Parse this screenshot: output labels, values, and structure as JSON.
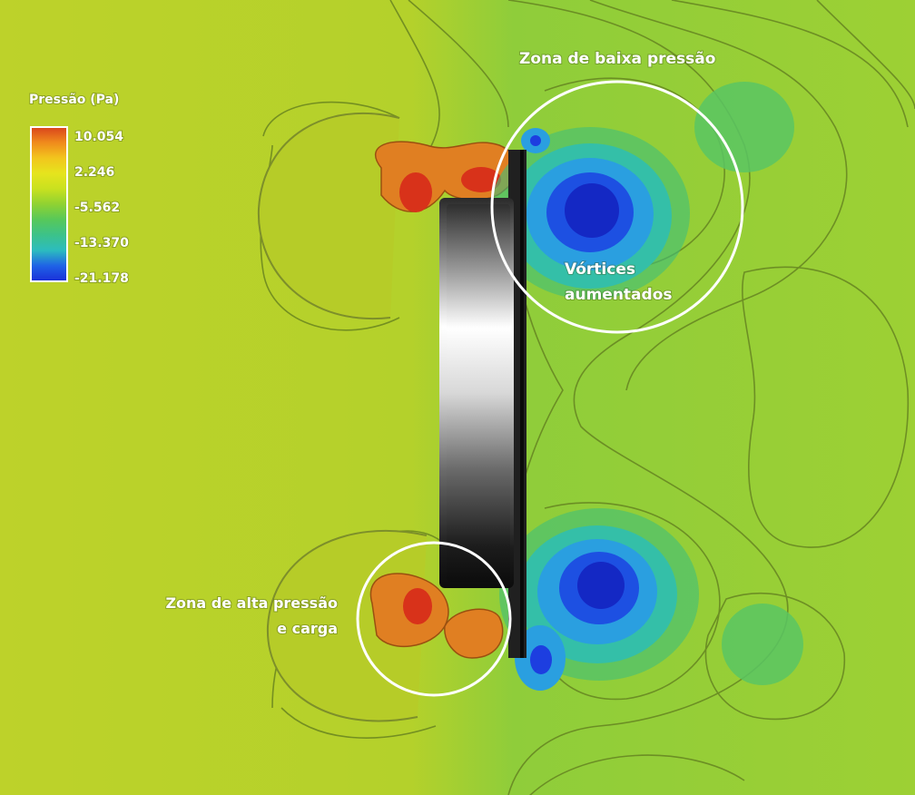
{
  "legend": {
    "title": "Pressão (Pa)",
    "values": [
      "10.054",
      "2.246",
      "-5.562",
      "-13.370",
      "-21.178"
    ],
    "colors": [
      "#d9431c",
      "#f08a1c",
      "#f2c51d",
      "#e6e41d",
      "#c9e11f",
      "#a8d92a",
      "#7fd236",
      "#57c85a",
      "#3cc28a",
      "#2cbcbf",
      "#1d9be0",
      "#1f62e6",
      "#1a2ed8"
    ]
  },
  "annotations": {
    "low_pressure": "Zona de baixa pressão",
    "vortices_line1": "Vórtices",
    "vortices_line2": "aumentados",
    "high_pressure_line1": "Zona de alta pressão",
    "high_pressure_line2": "e carga"
  },
  "colors": {
    "field_left": "#b9d12a",
    "field_right": "#8fcd36",
    "contour": "#5f7a1e",
    "high_pressure": "#e07f22",
    "peak_pressure": "#d8321a",
    "vortex_core": "#1630d8",
    "vortex_ring": "#2a8fe4"
  }
}
